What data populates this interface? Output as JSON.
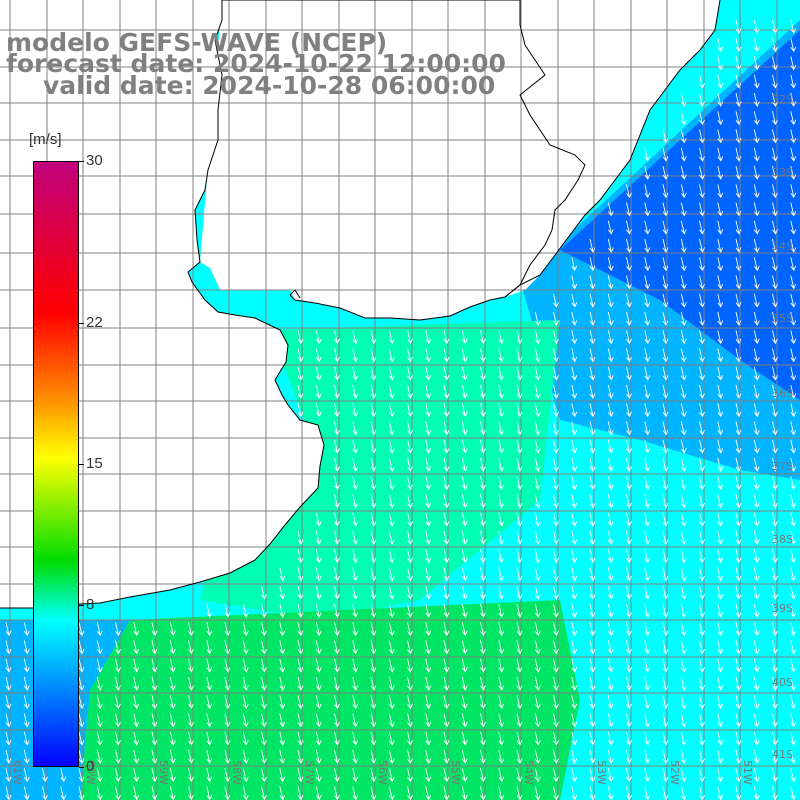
{
  "title": {
    "model": "modelo GEFS-WAVE (NCEP)",
    "forecast": "forecast date: 2024-10-22 12:00:00",
    "valid": "valid date: 2024-10-28 06:00:00"
  },
  "colorbar": {
    "unit": "[m/s]",
    "ticks": [
      "30",
      "22",
      "15",
      "8",
      "0"
    ],
    "tick_values": [
      30,
      22,
      15,
      8,
      0
    ],
    "range": [
      0,
      30
    ],
    "colors": [
      "#0000ff",
      "#0080ff",
      "#00ffff",
      "#00dc00",
      "#ffff00",
      "#ff8000",
      "#ff0000",
      "#c0007c"
    ]
  },
  "axis_labels": {
    "longitude": [
      "61W",
      "60W",
      "59W",
      "58W",
      "57W",
      "56W",
      "55W",
      "54W",
      "53W",
      "52W",
      "51W"
    ],
    "latitude": [
      "32S",
      "33S",
      "34S",
      "35S",
      "36S",
      "37S",
      "38S",
      "39S",
      "40S",
      "41S"
    ]
  },
  "map": {
    "land_color": "#ffffff",
    "coast_color": "#000000",
    "grid_color": "#808080",
    "arrow_color": "#ffffff",
    "field_colors": {
      "slow": "#0064ff",
      "mid_slow": "#00b4ff",
      "cyan": "#00ffff",
      "mint": "#00ffb4",
      "green": "#00e664"
    }
  }
}
